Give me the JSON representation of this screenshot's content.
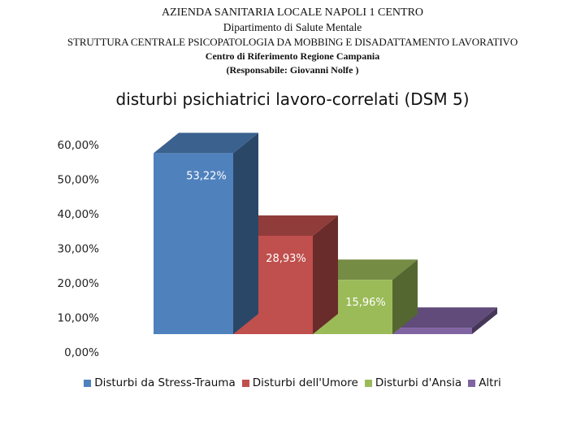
{
  "header": {
    "line1": "AZIENDA SANITARIA LOCALE NAPOLI 1 CENTRO",
    "line2": "Dipartimento di Salute Mentale",
    "line3": "STRUTTURA CENTRALE PSICOPATOLOGIA DA MOBBING E DISADATTAMENTO LAVORATIVO",
    "line4": "Centro di Riferimento Regione Campania",
    "line5": "(Responsabile: Giovanni Nolfe )"
  },
  "chart_data": {
    "type": "bar",
    "style": "3d",
    "title": "disturbi psichiatrici lavoro-correlati   (DSM 5)",
    "xlabel": "",
    "ylabel": "",
    "ylim": [
      0,
      60
    ],
    "yticks": [
      "0,00%",
      "10,00%",
      "20,00%",
      "30,00%",
      "40,00%",
      "50,00%",
      "60,00%"
    ],
    "grid": false,
    "legend_position": "bottom",
    "series": [
      {
        "name": "Disturbi da Stress-Trauma",
        "value": 53.22,
        "label": "53,22%",
        "color": "#4f81bd"
      },
      {
        "name": "Disturbi dell'Umore",
        "value": 28.93,
        "label": "28,93%",
        "color": "#c0504d"
      },
      {
        "name": "Disturbi d'Ansia",
        "value": 15.96,
        "label": "15,96%",
        "color": "#9bbb59"
      },
      {
        "name": "Altri",
        "value": 1.89,
        "label": "",
        "color": "#8064a2"
      }
    ]
  }
}
